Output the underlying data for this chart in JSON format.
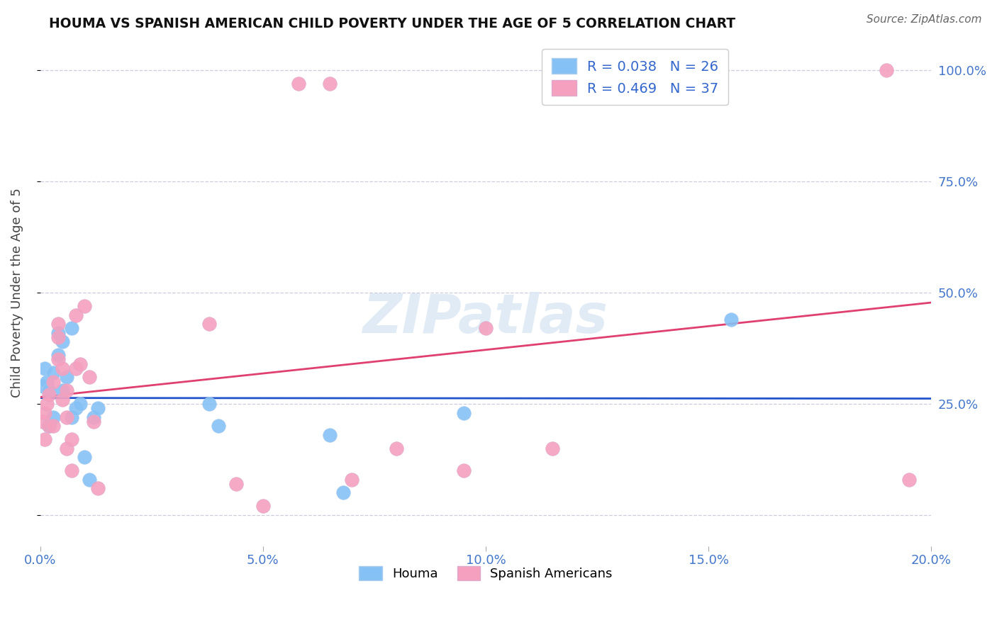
{
  "title": "HOUMA VS SPANISH AMERICAN CHILD POVERTY UNDER THE AGE OF 5 CORRELATION CHART",
  "source": "Source: ZipAtlas.com",
  "ylabel": "Child Poverty Under the Age of 5",
  "houma_color": "#85c1f5",
  "spanish_color": "#f5a0be",
  "trend_houma_color": "#2255cc",
  "trend_spanish_color": "#e04070",
  "houma_R": 0.038,
  "houma_N": 26,
  "spanish_R": 0.469,
  "spanish_N": 37,
  "watermark": "ZIPatlas",
  "y_ticks": [
    0.0,
    0.25,
    0.5,
    0.75,
    1.0
  ],
  "y_tick_labels": [
    "",
    "25.0%",
    "50.0%",
    "75.0%",
    "100.0%"
  ],
  "xlim": [
    0.0,
    0.2
  ],
  "ylim": [
    -0.07,
    1.07
  ],
  "houma_x": [
    0.0005,
    0.001,
    0.0015,
    0.002,
    0.002,
    0.003,
    0.003,
    0.004,
    0.004,
    0.005,
    0.005,
    0.006,
    0.007,
    0.007,
    0.008,
    0.009,
    0.01,
    0.011,
    0.012,
    0.013,
    0.038,
    0.04,
    0.065,
    0.068,
    0.095,
    0.155
  ],
  "houma_y": [
    0.29,
    0.33,
    0.3,
    0.28,
    0.2,
    0.32,
    0.22,
    0.36,
    0.41,
    0.28,
    0.39,
    0.31,
    0.42,
    0.22,
    0.24,
    0.25,
    0.13,
    0.08,
    0.22,
    0.24,
    0.25,
    0.2,
    0.18,
    0.05,
    0.23,
    0.44
  ],
  "spanish_x": [
    0.0005,
    0.001,
    0.001,
    0.0015,
    0.002,
    0.002,
    0.003,
    0.003,
    0.004,
    0.004,
    0.004,
    0.005,
    0.005,
    0.006,
    0.006,
    0.006,
    0.007,
    0.007,
    0.008,
    0.008,
    0.009,
    0.01,
    0.011,
    0.012,
    0.013,
    0.038,
    0.044,
    0.05,
    0.058,
    0.065,
    0.07,
    0.08,
    0.095,
    0.1,
    0.115,
    0.19,
    0.195
  ],
  "spanish_y": [
    0.21,
    0.23,
    0.17,
    0.25,
    0.2,
    0.27,
    0.2,
    0.3,
    0.35,
    0.4,
    0.43,
    0.33,
    0.26,
    0.28,
    0.22,
    0.15,
    0.1,
    0.17,
    0.45,
    0.33,
    0.34,
    0.47,
    0.31,
    0.21,
    0.06,
    0.43,
    0.07,
    0.02,
    0.97,
    0.97,
    0.08,
    0.15,
    0.1,
    0.42,
    0.15,
    1.0,
    0.08
  ]
}
